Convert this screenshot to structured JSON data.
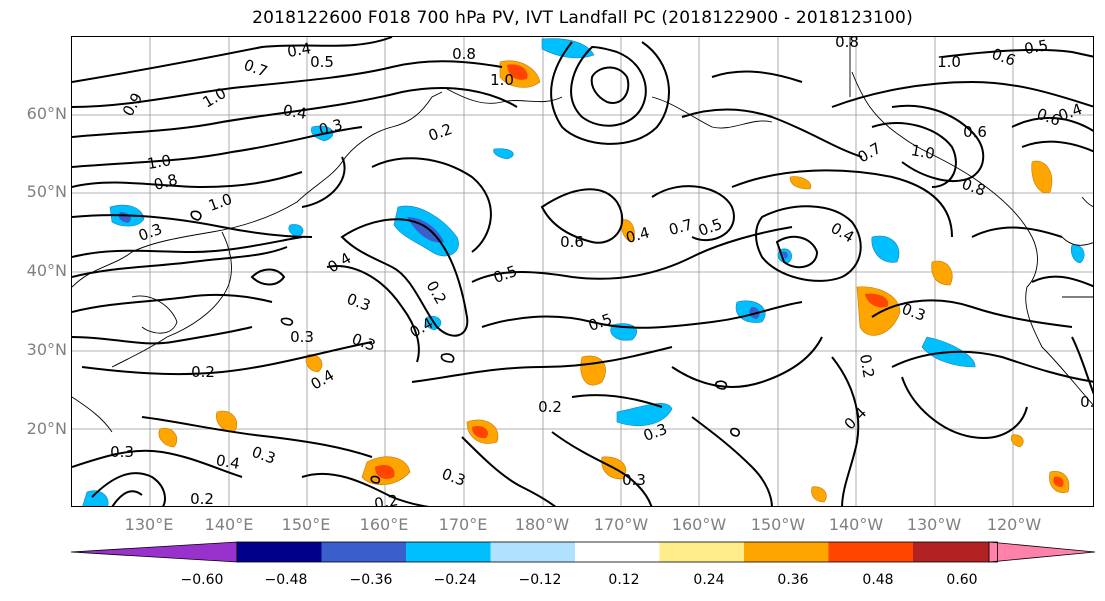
{
  "title": "2018122600 F018 700 hPa PV, IVT Landfall PC (2018122900 - 2018123100)",
  "latitude_labels": [
    "60°N",
    "50°N",
    "40°N",
    "30°N",
    "20°N"
  ],
  "longitude_labels": [
    "130°E",
    "140°E",
    "150°E",
    "160°E",
    "170°E",
    "180°W",
    "170°W",
    "160°W",
    "150°W",
    "140°W",
    "130°W",
    "120°W"
  ],
  "contour_labels": [
    "0.4",
    "0.5",
    "0.8",
    "1.0",
    "0.7",
    "0.9",
    "1.0",
    "0.3",
    "0.2",
    "1.0",
    "0.8",
    "1.0",
    "0.4",
    "0.3",
    "0.6",
    "0.4",
    "0.7",
    "0.5",
    "0.4",
    "0.3",
    "0.5",
    "0.3",
    "0.4",
    "0.2",
    "0.3",
    "0.4",
    "0.2",
    "0.4",
    "0.3",
    "0.3",
    "0.2",
    "0.2",
    "0.3",
    "0.2",
    "0.3",
    "0.3",
    "0.4",
    "0.4",
    "0.2",
    "0.3",
    "0.8",
    "0.5",
    "0.6",
    "1.0",
    "0.6",
    "1.0",
    "0.7",
    "0.8",
    "0.4",
    "0.6",
    "0.5",
    "0.5"
  ],
  "colorbar": {
    "colors": [
      "#9932cc",
      "#00008b",
      "#3a5fcd",
      "#00bfff",
      "#b0e2ff",
      "#ffffff",
      "#ffec8b",
      "#ffa500",
      "#ff4500",
      "#b22222",
      "#ff82ab"
    ],
    "ticks": [
      "−0.60",
      "−0.48",
      "−0.36",
      "−0.24",
      "−0.12",
      "0.12",
      "0.24",
      "0.36",
      "0.48",
      "0.60"
    ]
  },
  "features": {
    "grid": true,
    "coastlines": true,
    "contour_color": "#000000",
    "negative_colors": [
      "#b0e2ff",
      "#00bfff",
      "#3a5fcd",
      "#00008b"
    ],
    "positive_colors": [
      "#ffec8b",
      "#ffa500",
      "#ff4500",
      "#b22222"
    ]
  }
}
